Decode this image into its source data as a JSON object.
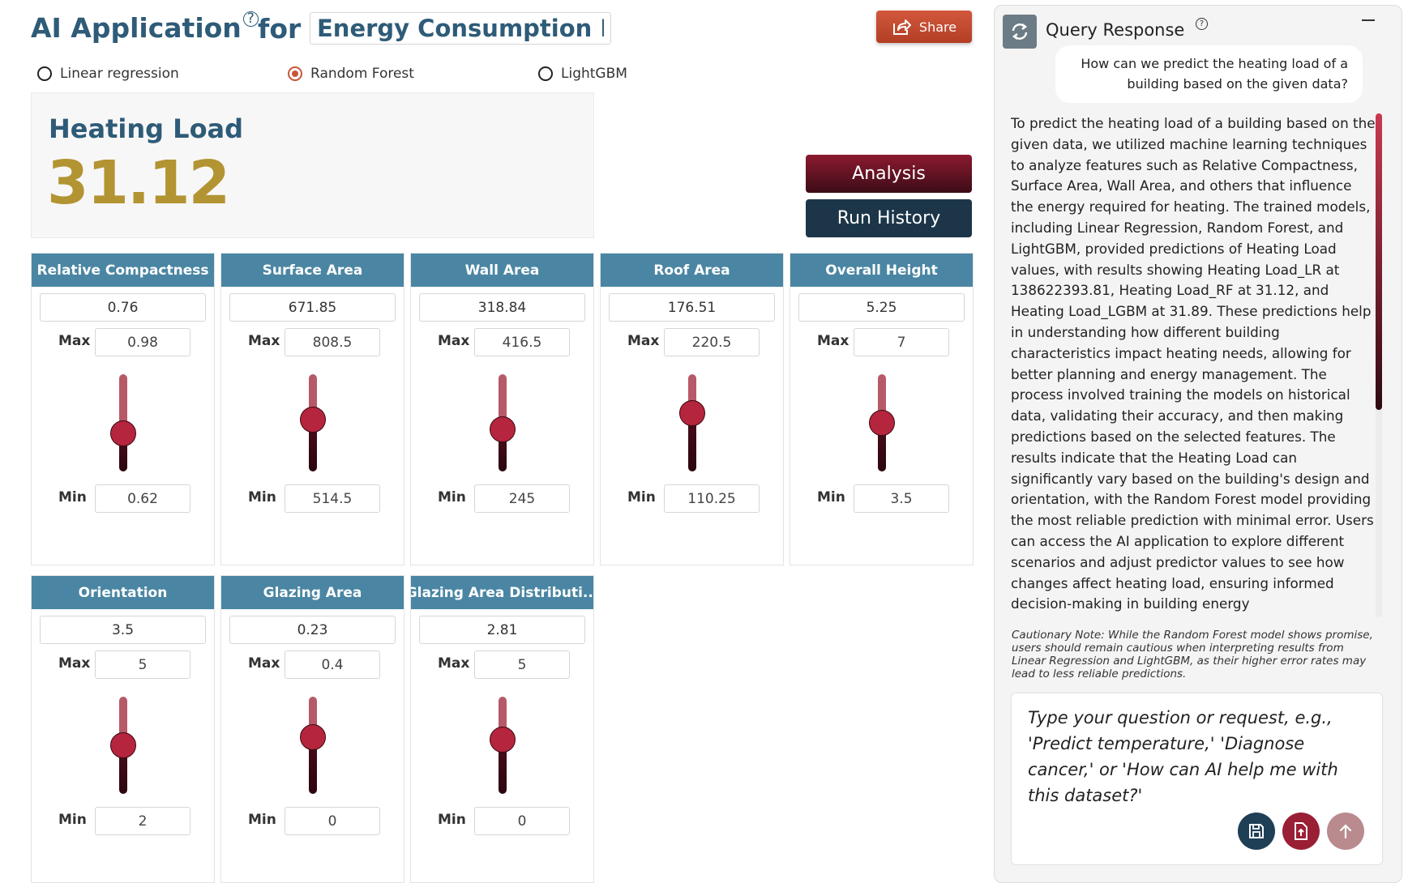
{
  "header": {
    "title": "AI Application",
    "title_help": "?",
    "for_label": "for",
    "dataset_value": "Energy Consumption Prediction",
    "share_label": "Share"
  },
  "models": [
    {
      "label": "Linear regression",
      "selected": false
    },
    {
      "label": "Random Forest",
      "selected": true
    },
    {
      "label": "LightGBM",
      "selected": false
    }
  ],
  "prediction": {
    "label": "Heating Load",
    "value": "31.12"
  },
  "buttons": {
    "analysis": "Analysis",
    "run_history": "Run History"
  },
  "labels": {
    "max": "Max",
    "min": "Min"
  },
  "features": [
    {
      "name": "Relative Compactness",
      "value": "0.76",
      "max": "0.98",
      "min": "0.62",
      "level": 0.39
    },
    {
      "name": "Surface Area",
      "value": "671.85",
      "max": "808.5",
      "min": "514.5",
      "level": 0.53
    },
    {
      "name": "Wall Area",
      "value": "318.84",
      "max": "416.5",
      "min": "245",
      "level": 0.43
    },
    {
      "name": "Roof Area",
      "value": "176.51",
      "max": "220.5",
      "min": "110.25",
      "level": 0.6
    },
    {
      "name": "Overall Height",
      "value": "5.25",
      "max": "7",
      "min": "3.5",
      "level": 0.5
    },
    {
      "name": "Orientation",
      "value": "3.5",
      "max": "5",
      "min": "2",
      "level": 0.5
    },
    {
      "name": "Glazing Area",
      "value": "0.23",
      "max": "0.4",
      "min": "0",
      "level": 0.58
    },
    {
      "name": "Glazing Area Distributi...",
      "value": "2.81",
      "max": "5",
      "min": "0",
      "level": 0.56
    }
  ],
  "colors": {
    "header_teal": "#4a86a3",
    "title_blue": "#2e5b78",
    "prediction_gold": "#b39432",
    "accent_red": "#b5253d",
    "share_orange": "#c8553a"
  },
  "query_panel": {
    "title": "Query Response",
    "help": "?",
    "user_message": "How can we predict the heating load of a building based on the given data?",
    "response": "To predict the heating load of a building based on the given data, we utilized machine learning techniques to analyze features such as Relative Compactness, Surface Area, Wall Area, and others that influence the energy required for heating. The trained models, including Linear Regression, Random Forest, and LightGBM, provided predictions of Heating Load values, with results showing Heating Load_LR at 138622393.81, Heating Load_RF at 31.12, and Heating Load_LGBM at 31.89. These predictions help in understanding how different building characteristics impact heating needs, allowing for better planning and energy management. The process involved training the models on historical data, validating their accuracy, and then making predictions based on the selected features. The results indicate that the Heating Load can significantly vary based on the building's design and orientation, with the Random Forest model providing the most reliable prediction with minimal error. Users can access the AI application to explore different scenarios and adjust predictor values to see how changes affect heating load, ensuring informed decision-making in building energy",
    "cautionary_note": "Cautionary Note: While the Random Forest model shows promise, users should remain cautious when interpreting results from Linear Regression and LightGBM, as their higher error rates may lead to less reliable predictions.",
    "prompt_placeholder": "Type your question or request, e.g., 'Predict temperature,' 'Diagnose cancer,' or 'How can AI help me with this dataset?'",
    "scroll_position": 0.0
  },
  "icons": {
    "share": "share-icon",
    "refresh": "refresh-icon",
    "minimize": "minimize-icon",
    "save": "save-icon",
    "upload": "upload-file-icon",
    "send": "arrow-up-icon"
  }
}
